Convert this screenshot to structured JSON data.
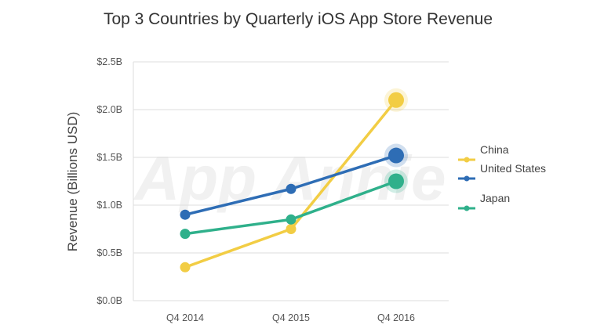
{
  "chart_data": {
    "type": "line",
    "title": "Top 3 Countries by Quarterly iOS App Store Revenue",
    "ylabel": "Revenue (Billions USD)",
    "xlabel": "",
    "categories": [
      "Q4 2014",
      "Q4 2015",
      "Q4 2016"
    ],
    "ylim": [
      0,
      2.5
    ],
    "yticks": [
      {
        "value": 0,
        "label": "$0.0B"
      },
      {
        "value": 0.5,
        "label": "$0.5B"
      },
      {
        "value": 1.0,
        "label": "$1.0B"
      },
      {
        "value": 1.5,
        "label": "$1.5B"
      },
      {
        "value": 2.0,
        "label": "$2.0B"
      },
      {
        "value": 2.5,
        "label": "$2.5B"
      }
    ],
    "grid": "horizontal",
    "legend_position": "right",
    "watermark": "App Annie",
    "series": [
      {
        "name": "China",
        "color": "#f2cd44",
        "values": [
          0.35,
          0.75,
          2.1
        ]
      },
      {
        "name": "United States",
        "color": "#2e6db5",
        "values": [
          0.9,
          1.17,
          1.52
        ]
      },
      {
        "name": "Japan",
        "color": "#2fb08b",
        "values": [
          0.7,
          0.85,
          1.25
        ]
      }
    ]
  }
}
